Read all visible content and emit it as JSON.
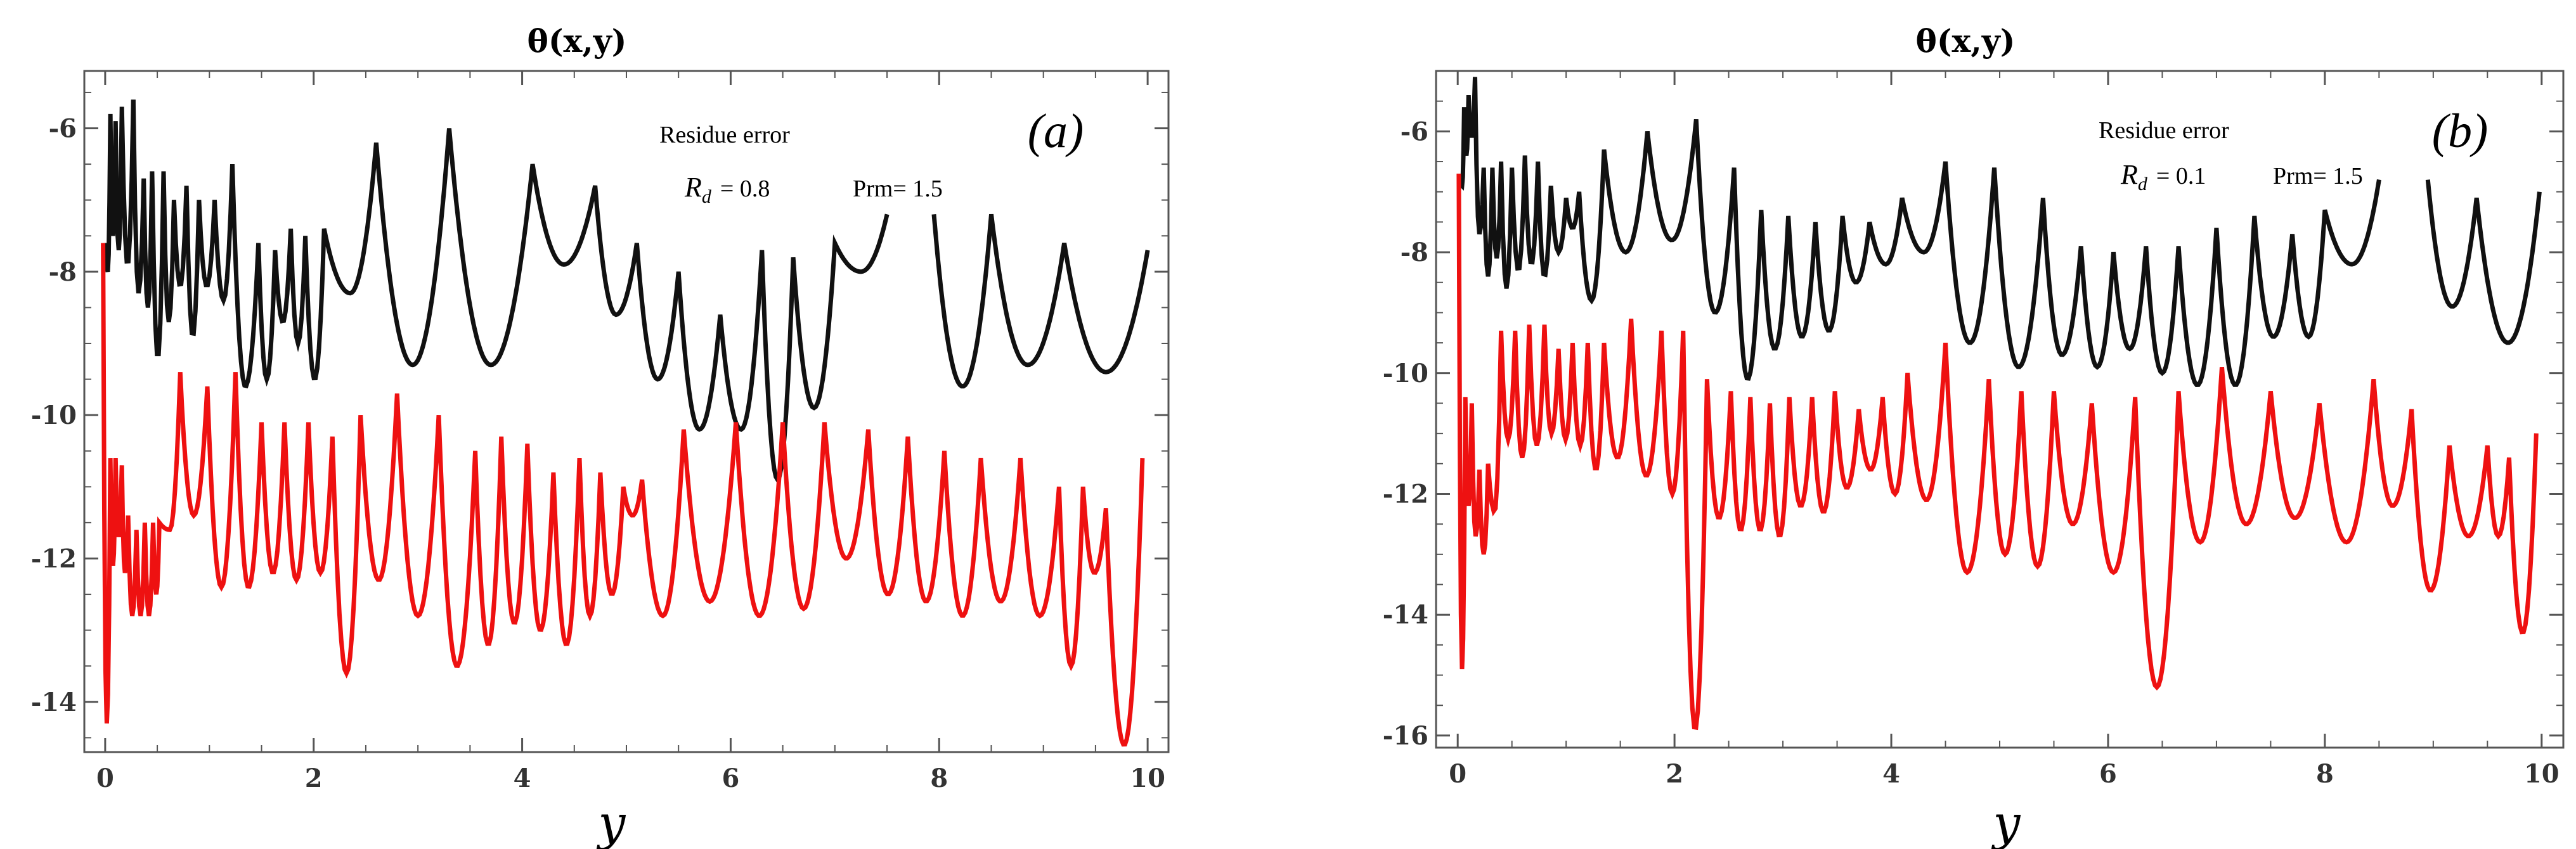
{
  "chart_data": [
    {
      "type": "line",
      "panel": "(a)",
      "title": "θ(x,y)",
      "xlabel": "y",
      "ylabel": "",
      "xlim": [
        -0.2,
        10.2
      ],
      "ylim": [
        -14.7,
        -5.2
      ],
      "xticks": [
        0,
        2,
        4,
        6,
        8,
        10
      ],
      "xtick_labels": [
        "0",
        "2",
        "4",
        "6",
        "8",
        "10"
      ],
      "yticks": [
        -6,
        -8,
        -10,
        -12,
        -14
      ],
      "ytick_labels": [
        "-6",
        "-8",
        "-10",
        "-12",
        "-14"
      ],
      "annotation": {
        "heading": "Residue error",
        "rd_symbol": "R",
        "rd_subscript": "d",
        "rd_value": "= 0.8",
        "prm": "Prm= 1.5"
      },
      "series": [
        {
          "name": "black",
          "color": "#111111",
          "segments": [
            {
              "peaks": [
                [
                  0.0,
                  -7.6
                ],
                [
                  0.05,
                  -5.8
                ],
                [
                  0.1,
                  -5.9
                ],
                [
                  0.16,
                  -5.7
                ],
                [
                  0.27,
                  -5.6
                ]
              ],
              "dips": [
                -8.0,
                -7.5,
                -7.7,
                -7.9
              ]
            },
            {
              "peaks": [
                [
                  0.27,
                  -5.6
                ],
                [
                  0.37,
                  -6.7
                ],
                [
                  0.45,
                  -6.6
                ],
                [
                  0.56,
                  -6.6
                ],
                [
                  0.66,
                  -7.0
                ],
                [
                  0.78,
                  -6.8
                ],
                [
                  0.9,
                  -7.0
                ],
                [
                  1.05,
                  -7.0
                ],
                [
                  1.22,
                  -6.5
                ],
                [
                  1.47,
                  -7.6
                ],
                [
                  1.63,
                  -7.7
                ],
                [
                  1.78,
                  -7.4
                ],
                [
                  1.92,
                  -7.5
                ],
                [
                  2.1,
                  -7.4
                ],
                [
                  2.6,
                  -6.2
                ],
                [
                  3.3,
                  -6.0
                ],
                [
                  4.1,
                  -6.5
                ],
                [
                  4.7,
                  -6.8
                ],
                [
                  5.1,
                  -7.6
                ],
                [
                  5.5,
                  -8.0
                ],
                [
                  5.9,
                  -8.6
                ],
                [
                  6.3,
                  -7.7
                ],
                [
                  6.6,
                  -7.8
                ],
                [
                  7.0,
                  -7.6
                ],
                [
                  7.5,
                  -7.2
                ]
              ],
              "dips": [
                -8.3,
                -8.5,
                -9.2,
                -8.7,
                -8.2,
                -8.9,
                -8.2,
                -8.4,
                -9.6,
                -9.5,
                -8.7,
                -9.0,
                -9.5,
                -8.3,
                -9.3,
                -9.3,
                -7.9,
                -8.6,
                -9.5,
                -10.2,
                -10.2,
                -10.9,
                -9.9,
                -8.0
              ]
            },
            {
              "peaks": [
                [
                  7.95,
                  -7.2
                ],
                [
                  8.5,
                  -7.2
                ],
                [
                  9.2,
                  -7.6
                ],
                [
                  10.0,
                  -7.7
                ]
              ],
              "dips": [
                -9.6,
                -9.3,
                -9.4
              ]
            }
          ]
        },
        {
          "name": "red",
          "color": "#ee1111",
          "segments": [
            {
              "peaks": [
                [
                  -0.02,
                  -7.6
                ],
                [
                  0.05,
                  -10.6
                ],
                [
                  0.1,
                  -10.6
                ],
                [
                  0.16,
                  -10.7
                ],
                [
                  0.22,
                  -11.4
                ],
                [
                  0.3,
                  -11.6
                ],
                [
                  0.38,
                  -11.5
                ],
                [
                  0.46,
                  -11.5
                ],
                [
                  0.52,
                  -11.5
                ],
                [
                  0.72,
                  -9.4
                ],
                [
                  0.98,
                  -9.6
                ],
                [
                  1.25,
                  -9.4
                ],
                [
                  1.5,
                  -10.1
                ],
                [
                  1.72,
                  -10.1
                ],
                [
                  1.95,
                  -10.1
                ],
                [
                  2.18,
                  -10.3
                ],
                [
                  2.45,
                  -10.0
                ],
                [
                  2.8,
                  -9.7
                ],
                [
                  3.2,
                  -10.0
                ],
                [
                  3.55,
                  -10.5
                ],
                [
                  3.8,
                  -10.3
                ],
                [
                  4.05,
                  -10.4
                ],
                [
                  4.3,
                  -10.8
                ],
                [
                  4.55,
                  -10.6
                ],
                [
                  4.75,
                  -10.8
                ],
                [
                  4.97,
                  -11.0
                ],
                [
                  5.15,
                  -10.9
                ],
                [
                  5.55,
                  -10.2
                ],
                [
                  6.05,
                  -10.1
                ],
                [
                  6.5,
                  -10.1
                ],
                [
                  6.9,
                  -10.1
                ],
                [
                  7.32,
                  -10.2
                ],
                [
                  7.7,
                  -10.3
                ],
                [
                  8.05,
                  -10.5
                ],
                [
                  8.4,
                  -10.6
                ],
                [
                  8.78,
                  -10.6
                ],
                [
                  9.15,
                  -11.0
                ],
                [
                  9.38,
                  -11.0
                ],
                [
                  9.6,
                  -11.3
                ],
                [
                  9.95,
                  -10.6
                ]
              ],
              "dips": [
                -14.3,
                -12.1,
                -11.7,
                -12.2,
                -12.8,
                -12.8,
                -12.8,
                -12.5,
                -11.6,
                -11.4,
                -12.4,
                -12.4,
                -12.2,
                -12.3,
                -12.2,
                -13.6,
                -12.3,
                -12.8,
                -13.5,
                -13.2,
                -12.9,
                -13.0,
                -13.2,
                -12.8,
                -12.5,
                -11.4,
                -12.8,
                -12.6,
                -12.8,
                -12.7,
                -12.0,
                -12.5,
                -12.6,
                -12.8,
                -12.6,
                -12.8,
                -13.5,
                -12.2,
                -14.6
              ]
            }
          ]
        }
      ]
    },
    {
      "type": "line",
      "panel": "(b)",
      "title": "θ(x,y)",
      "xlabel": "y",
      "ylabel": "",
      "xlim": [
        -0.2,
        10.2
      ],
      "ylim": [
        -16.2,
        -5.0
      ],
      "xticks": [
        0,
        2,
        4,
        6,
        8,
        10
      ],
      "xtick_labels": [
        "0",
        "2",
        "4",
        "6",
        "8",
        "10"
      ],
      "yticks": [
        -6,
        -8,
        -10,
        -12,
        -14,
        -16
      ],
      "ytick_labels": [
        "-6",
        "-8",
        "-10",
        "-12",
        "-14",
        "-16"
      ],
      "annotation": {
        "heading": "Residue error",
        "rd_symbol": "R",
        "rd_subscript": "d",
        "rd_value": "= 0.1",
        "prm": "Prm= 1.5"
      },
      "series": [
        {
          "name": "black",
          "color": "#111111",
          "segments": [
            {
              "peaks": [
                [
                  0.02,
                  -6.8
                ],
                [
                  0.06,
                  -5.6
                ],
                [
                  0.1,
                  -5.4
                ],
                [
                  0.16,
                  -5.1
                ],
                [
                  0.24,
                  -6.6
                ],
                [
                  0.32,
                  -6.6
                ],
                [
                  0.4,
                  -6.5
                ],
                [
                  0.5,
                  -6.6
                ],
                [
                  0.62,
                  -6.4
                ],
                [
                  0.74,
                  -6.5
                ],
                [
                  0.86,
                  -6.9
                ],
                [
                  1.0,
                  -7.1
                ],
                [
                  1.12,
                  -7.0
                ],
                [
                  1.35,
                  -6.3
                ],
                [
                  1.75,
                  -6.0
                ],
                [
                  2.2,
                  -5.8
                ],
                [
                  2.55,
                  -6.6
                ],
                [
                  2.8,
                  -7.3
                ],
                [
                  3.05,
                  -7.4
                ],
                [
                  3.3,
                  -7.5
                ],
                [
                  3.55,
                  -7.4
                ],
                [
                  3.8,
                  -7.5
                ],
                [
                  4.1,
                  -7.1
                ],
                [
                  4.5,
                  -6.5
                ],
                [
                  4.95,
                  -6.6
                ],
                [
                  5.4,
                  -7.1
                ],
                [
                  5.75,
                  -7.9
                ],
                [
                  6.05,
                  -8.0
                ],
                [
                  6.35,
                  -7.9
                ],
                [
                  6.65,
                  -7.9
                ],
                [
                  7.0,
                  -7.6
                ],
                [
                  7.35,
                  -7.4
                ],
                [
                  7.7,
                  -7.7
                ],
                [
                  8.0,
                  -7.3
                ],
                [
                  8.5,
                  -6.8
                ]
              ],
              "dips": [
                -6.9,
                -6.4,
                -6.1,
                -7.7,
                -8.4,
                -8.1,
                -8.6,
                -8.3,
                -8.2,
                -8.4,
                -8.0,
                -7.6,
                -8.8,
                -8.0,
                -7.8,
                -9.0,
                -10.1,
                -9.6,
                -9.4,
                -9.3,
                -8.5,
                -8.2,
                -8.0,
                -9.5,
                -9.9,
                -9.7,
                -9.9,
                -9.6,
                -10.0,
                -10.2,
                -10.2,
                -9.4,
                -9.4,
                -8.2
              ]
            },
            {
              "peaks": [
                [
                  8.95,
                  -6.8
                ],
                [
                  9.4,
                  -7.1
                ],
                [
                  9.98,
                  -7.0
                ]
              ],
              "dips": [
                -8.9,
                -9.5
              ]
            }
          ]
        },
        {
          "name": "red",
          "color": "#ee1111",
          "segments": [
            {
              "peaks": [
                [
                  0.01,
                  -6.7
                ],
                [
                  0.07,
                  -10.4
                ],
                [
                  0.13,
                  -10.5
                ],
                [
                  0.2,
                  -11.6
                ],
                [
                  0.28,
                  -11.5
                ],
                [
                  0.4,
                  -9.3
                ],
                [
                  0.53,
                  -9.3
                ],
                [
                  0.66,
                  -9.2
                ],
                [
                  0.8,
                  -9.2
                ],
                [
                  0.93,
                  -9.6
                ],
                [
                  1.06,
                  -9.5
                ],
                [
                  1.2,
                  -9.5
                ],
                [
                  1.35,
                  -9.5
                ],
                [
                  1.6,
                  -9.1
                ],
                [
                  1.88,
                  -9.3
                ],
                [
                  2.08,
                  -9.3
                ],
                [
                  2.3,
                  -10.1
                ],
                [
                  2.52,
                  -10.3
                ],
                [
                  2.7,
                  -10.4
                ],
                [
                  2.88,
                  -10.5
                ],
                [
                  3.06,
                  -10.4
                ],
                [
                  3.27,
                  -10.4
                ],
                [
                  3.48,
                  -10.3
                ],
                [
                  3.7,
                  -10.6
                ],
                [
                  3.92,
                  -10.4
                ],
                [
                  4.15,
                  -10.0
                ],
                [
                  4.5,
                  -9.5
                ],
                [
                  4.9,
                  -10.1
                ],
                [
                  5.2,
                  -10.3
                ],
                [
                  5.5,
                  -10.3
                ],
                [
                  5.85,
                  -10.5
                ],
                [
                  6.25,
                  -10.4
                ],
                [
                  6.65,
                  -10.3
                ],
                [
                  7.05,
                  -9.9
                ],
                [
                  7.5,
                  -10.3
                ],
                [
                  7.95,
                  -10.5
                ],
                [
                  8.45,
                  -10.1
                ],
                [
                  8.8,
                  -10.6
                ],
                [
                  9.15,
                  -11.2
                ],
                [
                  9.5,
                  -11.2
                ],
                [
                  9.7,
                  -11.4
                ],
                [
                  9.95,
                  -11.0
                ]
              ],
              "dips": [
                -14.9,
                -12.2,
                -12.7,
                -13.0,
                -12.3,
                -11.1,
                -11.4,
                -11.2,
                -11.0,
                -11.1,
                -11.2,
                -11.6,
                -11.4,
                -11.7,
                -12.0,
                -15.9,
                -12.4,
                -12.6,
                -12.6,
                -12.7,
                -12.2,
                -12.3,
                -11.9,
                -11.6,
                -12.0,
                -12.1,
                -13.3,
                -13.0,
                -13.2,
                -12.5,
                -13.3,
                -15.2,
                -12.8,
                -12.5,
                -12.4,
                -12.8,
                -12.2,
                -13.6,
                -12.7,
                -12.7,
                -14.3
              ]
            }
          ]
        }
      ]
    }
  ]
}
